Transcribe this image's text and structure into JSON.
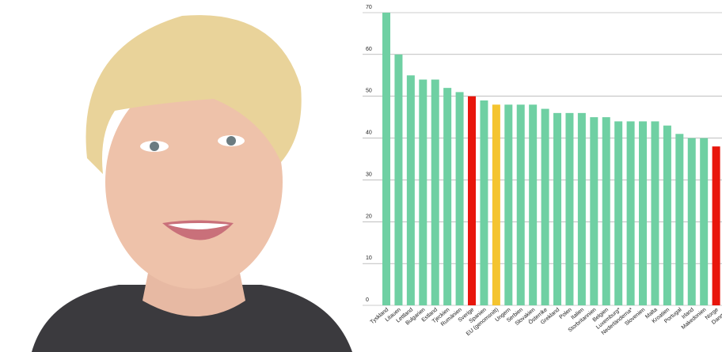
{
  "chart_data": {
    "type": "bar",
    "categories": [
      "Tyskland",
      "Litauen",
      "Lettland",
      "Bulgarien",
      "Estland",
      "Tjeckien",
      "Rumänien",
      "Sverige",
      "Spanien",
      "EU (genomsnitt)",
      "Ungern",
      "Serbien",
      "Slovakien",
      "Österrike",
      "Grekland",
      "Polen",
      "Italien",
      "Storbritannien",
      "Belgien",
      "Luxemburg*",
      "Nederländerna*",
      "Slovenien",
      "Malta",
      "Kroatien",
      "Portugal",
      "Irland",
      "Makedonien",
      "Norge",
      "Danmark"
    ],
    "values": [
      70,
      60,
      55,
      54,
      54,
      52,
      51,
      50,
      49,
      48,
      48,
      48,
      48,
      47,
      46,
      46,
      46,
      45,
      45,
      44,
      44,
      44,
      44,
      43,
      41,
      40,
      40,
      38,
      null
    ],
    "colors": [
      "#6fd0a3",
      "#6fd0a3",
      "#6fd0a3",
      "#6fd0a3",
      "#6fd0a3",
      "#6fd0a3",
      "#6fd0a3",
      "#e8160c",
      "#6fd0a3",
      "#f4c430",
      "#6fd0a3",
      "#6fd0a3",
      "#6fd0a3",
      "#6fd0a3",
      "#6fd0a3",
      "#6fd0a3",
      "#6fd0a3",
      "#6fd0a3",
      "#6fd0a3",
      "#6fd0a3",
      "#6fd0a3",
      "#6fd0a3",
      "#6fd0a3",
      "#6fd0a3",
      "#6fd0a3",
      "#6fd0a3",
      "#6fd0a3",
      "#e8160c",
      "#6fd0a3"
    ],
    "ylim": [
      0,
      70
    ],
    "yticks": [
      0,
      10,
      20,
      30,
      40,
      50,
      60,
      70
    ],
    "grid": true
  }
}
